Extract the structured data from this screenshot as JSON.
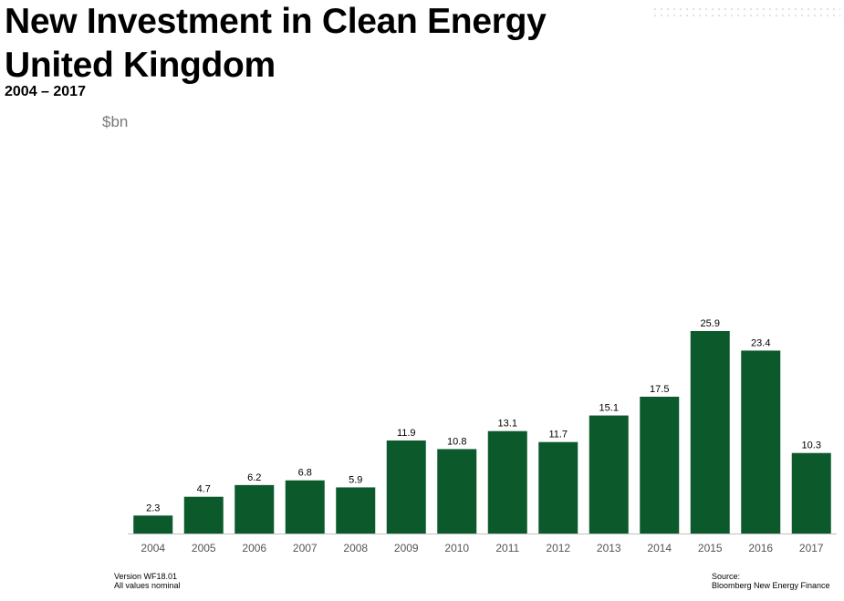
{
  "header": {
    "title_line1": "New Investment in Clean Energy",
    "title_line2": "United Kingdom",
    "subtitle": "2004 – 2017"
  },
  "footer": {
    "version": "Version WF18.01",
    "note": "All values  nominal",
    "source_label": "Source:",
    "source": "Bloomberg  New Energy Finance"
  },
  "colors": {
    "bar": "#0c5a2c",
    "axis": "#bfbfbf"
  },
  "chart_data": {
    "type": "bar",
    "title": "New Investment in Clean Energy United Kingdom",
    "subtitle": "2004 – 2017",
    "ylabel": "$bn",
    "xlabel": "",
    "categories": [
      "2004",
      "2005",
      "2006",
      "2007",
      "2008",
      "2009",
      "2010",
      "2011",
      "2012",
      "2013",
      "2014",
      "2015",
      "2016",
      "2017"
    ],
    "values": [
      2.3,
      4.7,
      6.2,
      6.8,
      5.9,
      11.9,
      10.8,
      13.1,
      11.7,
      15.1,
      17.5,
      25.9,
      23.4,
      10.3
    ],
    "value_labels": [
      "2.3",
      "4.7",
      "6.2",
      "6.8",
      "5.9",
      "11.9",
      "10.8",
      "13.1",
      "11.7",
      "15.1",
      "17.5",
      "25.9",
      "23.4",
      "10.3"
    ],
    "ylim": [
      0,
      26
    ],
    "grid": false,
    "legend": "none"
  }
}
